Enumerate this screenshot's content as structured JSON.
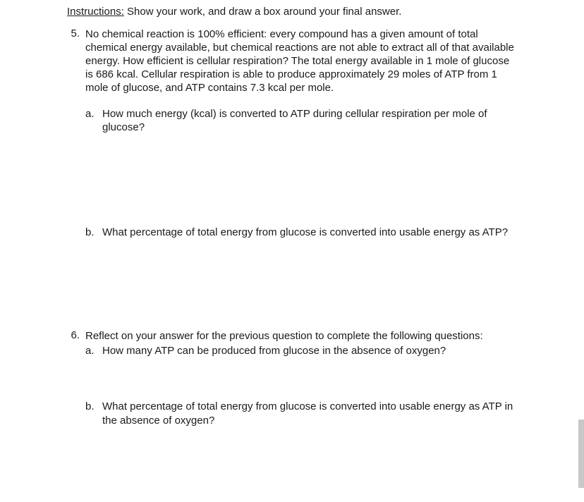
{
  "instructions": {
    "label": "Instructions:",
    "text": " Show your work, and draw a box around your final answer."
  },
  "questions": [
    {
      "number": "5.",
      "prompt": "No chemical reaction is 100% efficient: every compound has a given amount of total chemical energy available, but chemical reactions are not able to extract all of that available energy. How efficient is cellular respiration?  The total energy available in 1 mole of glucose is 686 kcal.  Cellular respiration is able to produce approximately 29 moles of ATP from 1 mole of glucose, and ATP contains 7.3 kcal per mole.",
      "subparts": [
        {
          "letter": "a.",
          "text": " How much energy (kcal) is converted to ATP during cellular respiration per mole of glucose?"
        },
        {
          "letter": "b.",
          "text": "What percentage of total energy from glucose is converted into usable energy as ATP?"
        }
      ]
    },
    {
      "number": "6.",
      "prompt": "Reflect on your answer for the previous question to complete the following questions:",
      "subparts": [
        {
          "letter": "a.",
          "text": "How many ATP can be produced from glucose in the absence of oxygen?"
        },
        {
          "letter": "b.",
          "text": " What percentage of total energy from glucose is converted into usable energy as ATP in the absence of oxygen?"
        }
      ]
    }
  ],
  "colors": {
    "text": "#1a1a1a",
    "background": "#ffffff",
    "scrollbar": "#c8c8c8"
  },
  "typography": {
    "font_family": "Arial",
    "body_fontsize": 15,
    "line_height": 1.27
  }
}
